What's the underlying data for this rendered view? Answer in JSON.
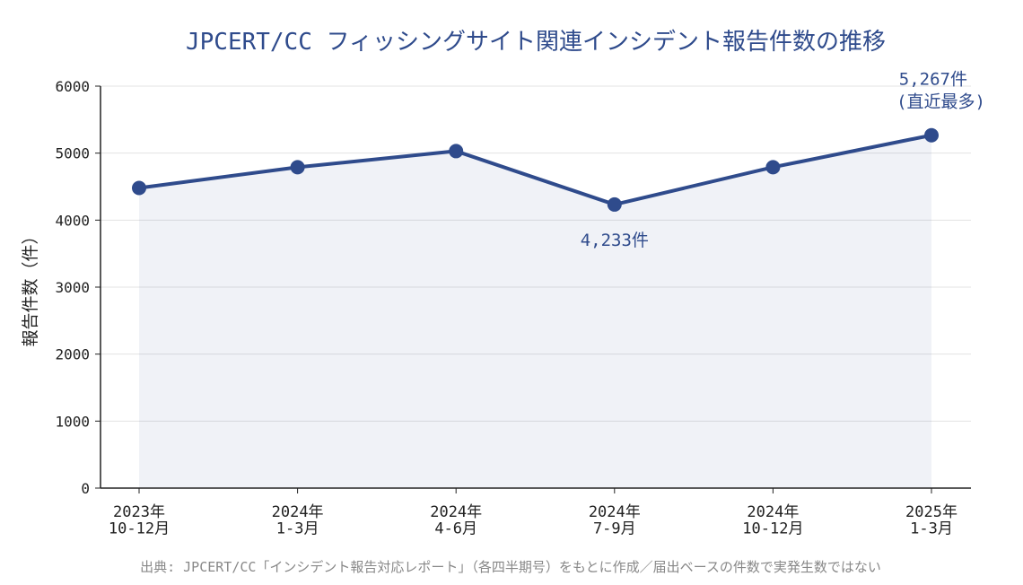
{
  "chart_data": {
    "type": "line",
    "title": "JPCERT/CC フィッシングサイト関連インシデント報告件数の推移",
    "ylabel": "報告件数（件）",
    "source": "出典: JPCERT/CC「インシデント報告対応レポート」（各四半期号）をもとに作成／届出ベースの件数で実発生数ではない",
    "categories": [
      "2023年\n10-12月",
      "2024年\n1-3月",
      "2024年\n4-6月",
      "2024年\n7-9月",
      "2024年\n10-12月",
      "2025年\n1-3月"
    ],
    "values": [
      4480,
      4790,
      5030,
      4233,
      4790,
      5267
    ],
    "value_labels": [
      null,
      null,
      null,
      "4,233件",
      null,
      "5,267件"
    ],
    "annotation": "(直近最多)",
    "color": "#2f4b8c",
    "fill": true,
    "ylim": [
      0,
      6000
    ],
    "yticks": [
      0,
      1000,
      2000,
      3000,
      4000,
      5000,
      6000
    ],
    "grid": true
  }
}
